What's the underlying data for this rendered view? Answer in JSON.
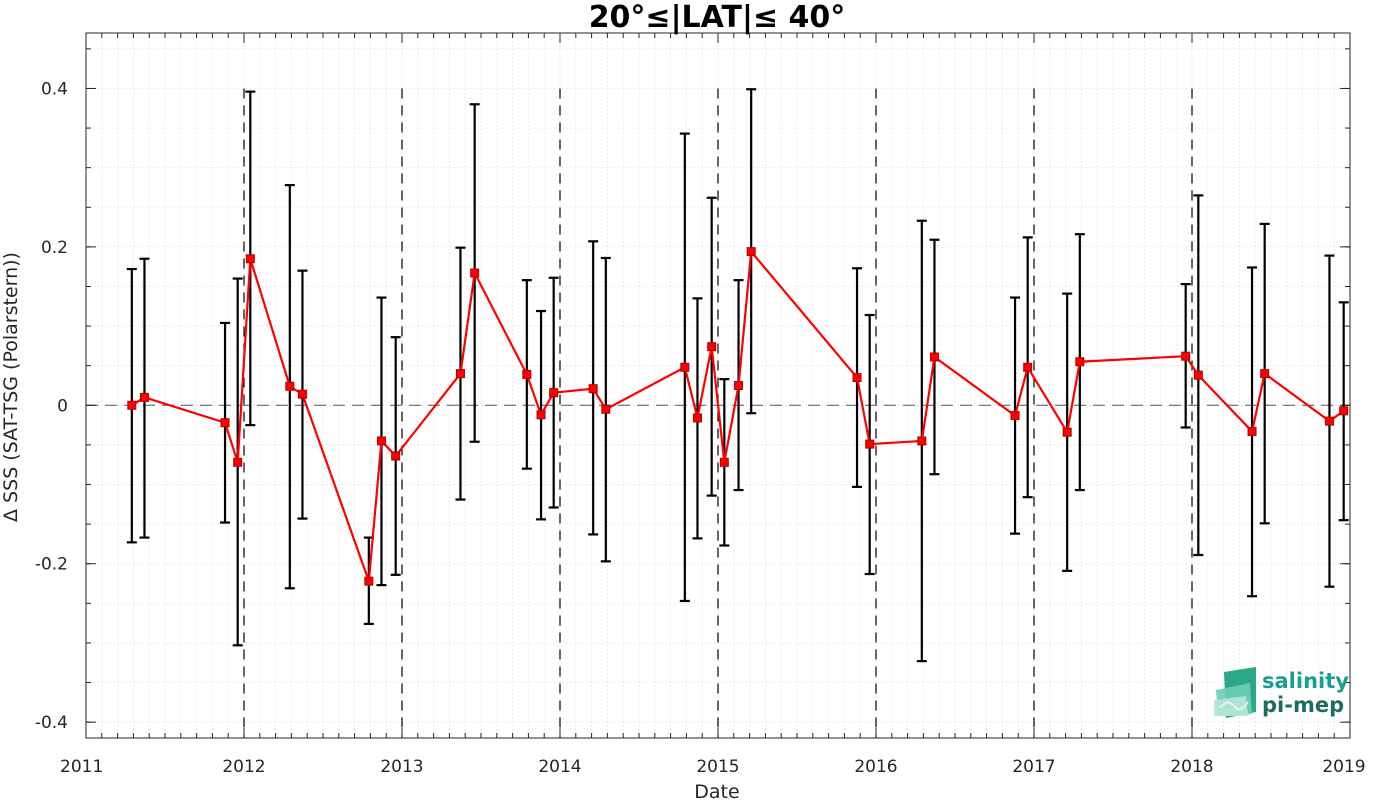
{
  "chart_data": {
    "type": "line",
    "title": "20°≤|LAT|≤ 40°",
    "xlabel": "Date",
    "ylabel": "Δ SSS (SAT-TSG (Polarstern))",
    "xlim": [
      2011,
      2019
    ],
    "ylim": [
      -0.42,
      0.47
    ],
    "x_ticks": [
      "2011",
      "2012",
      "2013",
      "2014",
      "2015",
      "2016",
      "2017",
      "2018",
      "2019"
    ],
    "y_ticks": [
      {
        "value": -0.4,
        "label": "-0.4"
      },
      {
        "value": -0.2,
        "label": "-0.2"
      },
      {
        "value": 0,
        "label": "0"
      },
      {
        "value": 0.2,
        "label": "0.2"
      },
      {
        "value": 0.4,
        "label": "0.4"
      }
    ],
    "grid": true,
    "zero_line": true,
    "year_separators": [
      2012,
      2013,
      2014,
      2015,
      2016,
      2017,
      2018
    ],
    "colors": {
      "line": "#ff0000",
      "marker": "#ff0000",
      "errorbar": "#000000",
      "logo": "#1a9e8f"
    },
    "series": [
      {
        "points": [
          {
            "x": 2011.29,
            "y": 0.0,
            "lo": -0.173,
            "hi": 0.172
          },
          {
            "x": 2011.37,
            "y": 0.01,
            "lo": -0.167,
            "hi": 0.185
          },
          {
            "x": 2011.88,
            "y": -0.022,
            "lo": -0.148,
            "hi": 0.104
          },
          {
            "x": 2011.96,
            "y": -0.072,
            "lo": -0.303,
            "hi": 0.16
          },
          {
            "x": 2012.04,
            "y": 0.185,
            "lo": -0.025,
            "hi": 0.396
          },
          {
            "x": 2012.29,
            "y": 0.024,
            "lo": -0.231,
            "hi": 0.278
          },
          {
            "x": 2012.37,
            "y": 0.014,
            "lo": -0.143,
            "hi": 0.17
          },
          {
            "x": 2012.79,
            "y": -0.222,
            "lo": -0.276,
            "hi": -0.167
          },
          {
            "x": 2012.87,
            "y": -0.045,
            "lo": -0.227,
            "hi": 0.136
          },
          {
            "x": 2012.96,
            "y": -0.064,
            "lo": -0.214,
            "hi": 0.086
          },
          {
            "x": 2013.37,
            "y": 0.04,
            "lo": -0.119,
            "hi": 0.199
          },
          {
            "x": 2013.46,
            "y": 0.167,
            "lo": -0.046,
            "hi": 0.38
          },
          {
            "x": 2013.79,
            "y": 0.039,
            "lo": -0.08,
            "hi": 0.158
          },
          {
            "x": 2013.88,
            "y": -0.012,
            "lo": -0.144,
            "hi": 0.119
          },
          {
            "x": 2013.96,
            "y": 0.016,
            "lo": -0.129,
            "hi": 0.161
          },
          {
            "x": 2014.21,
            "y": 0.021,
            "lo": -0.163,
            "hi": 0.207
          },
          {
            "x": 2014.29,
            "y": -0.005,
            "lo": -0.197,
            "hi": 0.186
          },
          {
            "x": 2014.79,
            "y": 0.048,
            "lo": -0.247,
            "hi": 0.343
          },
          {
            "x": 2014.87,
            "y": -0.016,
            "lo": -0.168,
            "hi": 0.135
          },
          {
            "x": 2014.96,
            "y": 0.074,
            "lo": -0.114,
            "hi": 0.262
          },
          {
            "x": 2015.04,
            "y": -0.072,
            "lo": -0.177,
            "hi": 0.033
          },
          {
            "x": 2015.13,
            "y": 0.025,
            "lo": -0.107,
            "hi": 0.158
          },
          {
            "x": 2015.21,
            "y": 0.194,
            "lo": -0.01,
            "hi": 0.399
          },
          {
            "x": 2015.88,
            "y": 0.035,
            "lo": -0.103,
            "hi": 0.173
          },
          {
            "x": 2015.96,
            "y": -0.049,
            "lo": -0.213,
            "hi": 0.114
          },
          {
            "x": 2016.29,
            "y": -0.045,
            "lo": -0.323,
            "hi": 0.233
          },
          {
            "x": 2016.37,
            "y": 0.061,
            "lo": -0.087,
            "hi": 0.209
          },
          {
            "x": 2016.88,
            "y": -0.013,
            "lo": -0.162,
            "hi": 0.136
          },
          {
            "x": 2016.96,
            "y": 0.048,
            "lo": -0.116,
            "hi": 0.212
          },
          {
            "x": 2017.21,
            "y": -0.034,
            "lo": -0.209,
            "hi": 0.141
          },
          {
            "x": 2017.29,
            "y": 0.055,
            "lo": -0.107,
            "hi": 0.216
          },
          {
            "x": 2017.96,
            "y": 0.062,
            "lo": -0.028,
            "hi": 0.153
          },
          {
            "x": 2018.04,
            "y": 0.038,
            "lo": -0.189,
            "hi": 0.265
          },
          {
            "x": 2018.38,
            "y": -0.033,
            "lo": -0.241,
            "hi": 0.174
          },
          {
            "x": 2018.46,
            "y": 0.04,
            "lo": -0.149,
            "hi": 0.229
          },
          {
            "x": 2018.87,
            "y": -0.02,
            "lo": -0.229,
            "hi": 0.189
          },
          {
            "x": 2018.96,
            "y": -0.007,
            "lo": -0.145,
            "hi": 0.13
          }
        ]
      }
    ]
  },
  "logo": {
    "line1": "salinity",
    "line2": "pi-mep"
  }
}
